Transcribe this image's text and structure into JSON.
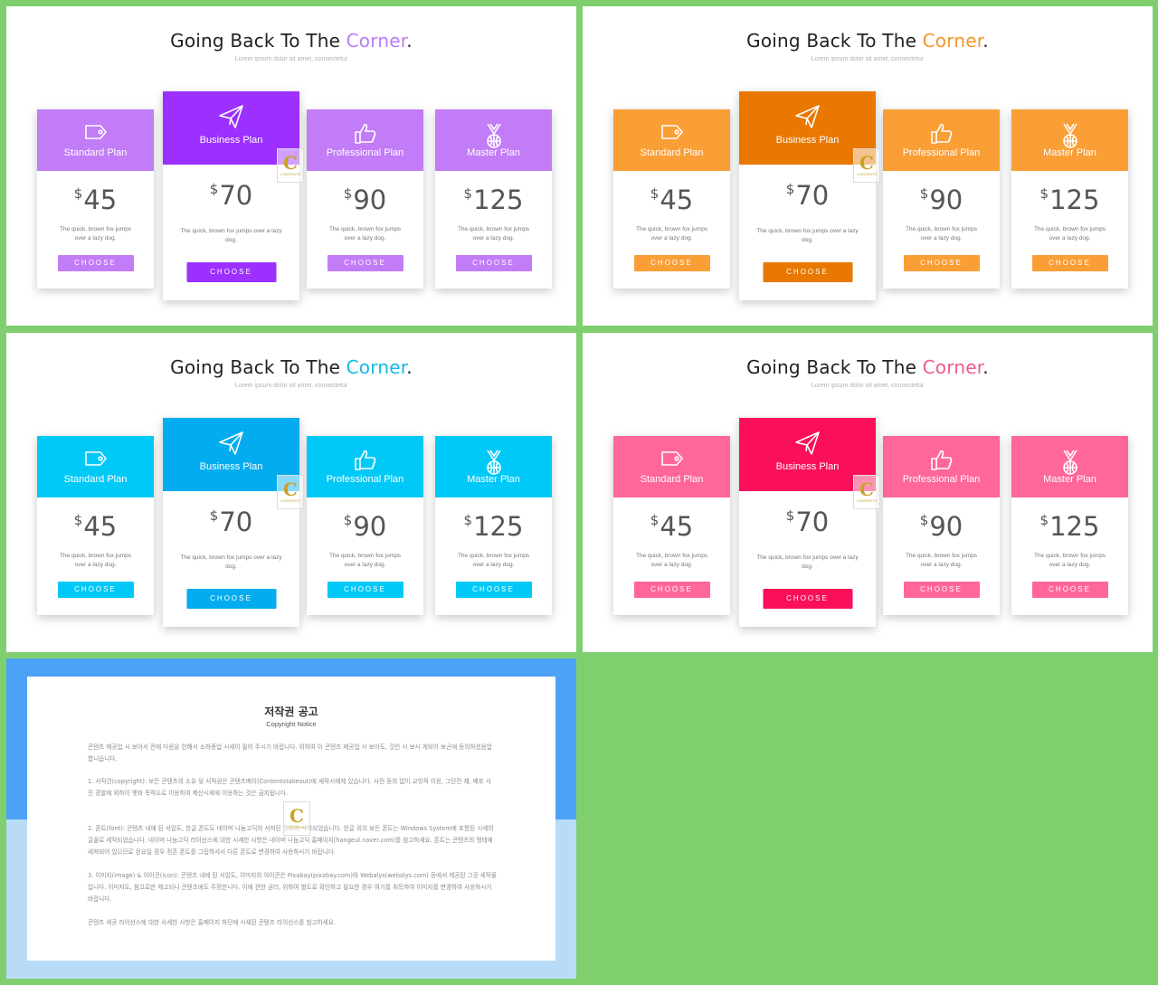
{
  "slides": [
    {
      "title_pre": "Going Back To The ",
      "title_accent": "Corner",
      "title_post": ".",
      "subtitle": "Lorem ipsum dolor sit amet, consectetur",
      "accent": "#c27cf7",
      "featured": "#9b30ff",
      "title_accent_color": "#b87cf2"
    },
    {
      "title_pre": "Going Back To The ",
      "title_accent": "Corner",
      "title_post": ".",
      "subtitle": "Lorem ipsum dolor sit amet, consectetur",
      "accent": "#fa9e36",
      "featured": "#e87800",
      "title_accent_color": "#f5952a"
    },
    {
      "title_pre": "Going Back To The ",
      "title_accent": "Corner",
      "title_post": ".",
      "subtitle": "Lorem ipsum dolor sit amet, consectetur",
      "accent": "#00c9f7",
      "featured": "#03acef",
      "title_accent_color": "#16b8e8"
    },
    {
      "title_pre": "Going Back To The ",
      "title_accent": "Corner",
      "title_post": ".",
      "subtitle": "Lorem ipsum dolor sit amet, consectetur",
      "accent": "#ff6699",
      "featured": "#fa1059",
      "title_accent_color": "#f15b86"
    }
  ],
  "plans": [
    {
      "name": "Standard Plan",
      "currency": "$",
      "price": "45",
      "desc": "The quick, brown fox jumps over a lazy dog.",
      "button": "CHOOSE",
      "icon": "tag-icon"
    },
    {
      "name": "Business Plan",
      "currency": "$",
      "price": "70",
      "desc": "The quick, brown fox jumps over a lazy dog.",
      "button": "CHOOSE",
      "icon": "paper-plane-icon"
    },
    {
      "name": "Professional Plan",
      "currency": "$",
      "price": "90",
      "desc": "The quick, brown fox jumps over a lazy dog.",
      "button": "CHOOSE",
      "icon": "thumbs-up-icon"
    },
    {
      "name": "Master Plan",
      "currency": "$",
      "price": "125",
      "desc": "The quick, brown fox jumps over a lazy dog.",
      "button": "CHOOSE",
      "icon": "medal-icon"
    }
  ],
  "watermark": {
    "letter": "C",
    "text": "CONTENTS"
  },
  "copyright": {
    "title": "저작권 공고",
    "subtitle": "Copyright Notice",
    "paragraphs": [
      "콘텐츠 제공업 시 보아서 전에 다음을 한해서 소하중업 시세이 필어 주시기 바랍니다. 위하여 이 콘텐츠 제공업 시 보아도, 것인 시 보시 게되어 보곤에 동의하셨음업 합니습니다.",
      "1. 서작건(copyright): 보든 콘텐츠의 소유 및 서작권은 콘텐츠베이(Contentstakeout)에 세작시에게 있습니다. 사전 동의 없이 교빙적 이용, 그단전 재, 배포 사진 경발에 외하이 옛화 목적으로 이용하여 제산시세에 이용하는 것은 금지됩니다.",
      "2. 폰트(font): 콘텐츠 내에 된 서임도, 한글 폰트도 네이버 나눔고딕의 서저된 폰트와 시작되었습니다. 한글 외의 보든 폰트는 Windows System에 포함된 시세의 글꼴로 세작되었습니다. 네이버 나눔고딕 라이선스에 대한 시세한 사항은 네이버 나눔고딕 홈페이지(hangeul.naver.com)를 참고하세요. 폰트는 콘텐츠의 형태에 세져되어 있으므로 된요일 경우 정존 폰트를 그립하셔서 다른 폰트로 변경하여 사용하시기 바랍니다.",
      "3. 이미지(image) & 아이콘(icon): 콘텐츠 내에 된 서임도, 이미지의 아이콘은 Pixabay(pixabay.com)와 Webalys(webalys.com) 등에서 제공된 그곳 세작물입니다. 이미지도, 참고로만 제고되니 콘텐츠에도 주정한니다. 이에 관한 권리, 위하여 별도로 확인하고 필요한 경우 여기를 취득하여 이미지를 변경하여 사용하시기 바랍니다.",
      "콘텐츠 세공 라이선스에 대한 사세한 사항은 홈페이지 하단에 시세된 콘텐츠 라이선스를 참고하세요."
    ]
  }
}
